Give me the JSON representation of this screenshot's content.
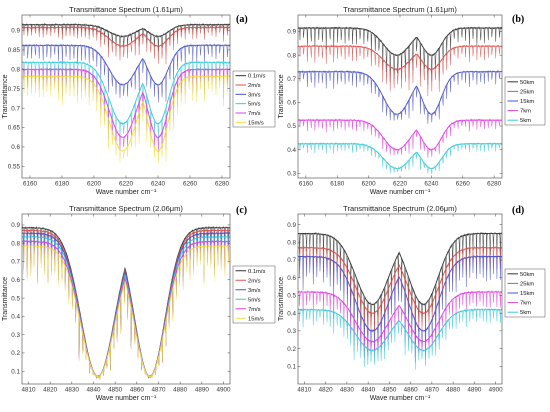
{
  "chart_data": [
    {
      "id": "a",
      "type": "line",
      "letter": "(a)",
      "title": "Transmittance Spectrum (1.61μm)",
      "xlabel": "Wave number cm⁻¹",
      "ylabel": "Transmittance",
      "xlim": [
        6155,
        6285
      ],
      "ylim": [
        0.52,
        0.94
      ],
      "xticks": [
        6160,
        6180,
        6200,
        6220,
        6240,
        6260,
        6280
      ],
      "yticks": [
        0.55,
        0.6,
        0.65,
        0.7,
        0.75,
        0.8,
        0.85,
        0.9
      ],
      "ytick_labels": [
        "0.55",
        "0.6",
        "0.65",
        "0.7",
        "0.75",
        "0.8",
        "0.85",
        "0.9"
      ],
      "legend_position": "right",
      "grid": false,
      "line_spacing": 2.4,
      "dips": [
        {
          "center": 6218,
          "width": 12
        },
        {
          "center": 6240,
          "width": 9
        }
      ],
      "series": [
        {
          "name": "0.1m/s",
          "color": "#333333",
          "baseline": 0.915,
          "band_min": 0.885,
          "line_min": 0.83
        },
        {
          "name": "2m/s",
          "color": "#d9534f",
          "baseline": 0.908,
          "band_min": 0.86,
          "line_min": 0.8
        },
        {
          "name": "3m/s",
          "color": "#4a52c9",
          "baseline": 0.862,
          "band_min": 0.76,
          "line_min": 0.7
        },
        {
          "name": "5m/s",
          "color": "#38c9d9",
          "baseline": 0.818,
          "band_min": 0.66,
          "line_min": 0.6
        },
        {
          "name": "7m/s",
          "color": "#e040e0",
          "baseline": 0.8,
          "band_min": 0.625,
          "line_min": 0.57
        },
        {
          "name": "15m/s",
          "color": "#f0e040",
          "baseline": 0.782,
          "band_min": 0.59,
          "line_min": 0.545
        }
      ]
    },
    {
      "id": "b",
      "type": "line",
      "letter": "(b)",
      "title": "Transmittance Spectrum (1.61μm)",
      "xlabel": "Wave number cm⁻¹",
      "ylabel": "Transmittance",
      "xlim": [
        6155,
        6285
      ],
      "ylim": [
        0.28,
        0.97
      ],
      "xticks": [
        6160,
        6180,
        6200,
        6220,
        6240,
        6260,
        6280
      ],
      "yticks": [
        0.3,
        0.4,
        0.5,
        0.6,
        0.7,
        0.8,
        0.9
      ],
      "ytick_labels": [
        "0.3",
        "0.4",
        "0.5",
        "0.6",
        "0.7",
        "0.8",
        "0.9"
      ],
      "legend_position": "right",
      "grid": false,
      "line_spacing": 2.4,
      "dips": [
        {
          "center": 6218,
          "width": 12
        },
        {
          "center": 6240,
          "width": 9
        }
      ],
      "series": [
        {
          "name": "50km",
          "color": "#333333",
          "baseline": 0.915,
          "band_min": 0.8,
          "line_min": 0.64
        },
        {
          "name": "25km",
          "color": "#d9534f",
          "baseline": 0.838,
          "band_min": 0.74,
          "line_min": 0.6
        },
        {
          "name": "15km",
          "color": "#4a52c9",
          "baseline": 0.73,
          "band_min": 0.55,
          "line_min": 0.5
        },
        {
          "name": "7km",
          "color": "#e040e0",
          "baseline": 0.525,
          "band_min": 0.4,
          "line_min": 0.36
        },
        {
          "name": "5km",
          "color": "#38c9d9",
          "baseline": 0.425,
          "band_min": 0.32,
          "line_min": 0.29
        }
      ]
    },
    {
      "id": "c",
      "type": "line",
      "letter": "(c)",
      "title": "Transmittance Spectrum (2.06μm)",
      "xlabel": "Wave number cm⁻¹",
      "ylabel": "Transmittance",
      "xlim": [
        4807,
        4903
      ],
      "ylim": [
        0.03,
        0.96
      ],
      "xticks": [
        4810,
        4820,
        4830,
        4840,
        4850,
        4860,
        4870,
        4880,
        4890,
        4900
      ],
      "yticks": [
        0.1,
        0.2,
        0.3,
        0.4,
        0.5,
        0.6,
        0.7,
        0.8,
        0.9
      ],
      "ytick_labels": [
        "0.1",
        "0.2",
        "0.3",
        "0.4",
        "0.5",
        "0.6",
        "0.7",
        "0.8",
        "0.9"
      ],
      "legend_position": "right",
      "grid": false,
      "line_spacing": 1.6,
      "dips": [
        {
          "center": 4842,
          "width": 11
        },
        {
          "center": 4866,
          "width": 10
        }
      ],
      "series": [
        {
          "name": "0.1m/s",
          "color": "#333333",
          "baseline": 0.885,
          "band_min": 0.07,
          "line_min": 0.06
        },
        {
          "name": "2m/s",
          "color": "#d9534f",
          "baseline": 0.87,
          "band_min": 0.07,
          "line_min": 0.06
        },
        {
          "name": "3m/s",
          "color": "#4a52c9",
          "baseline": 0.855,
          "band_min": 0.07,
          "line_min": 0.06
        },
        {
          "name": "5m/s",
          "color": "#38c9d9",
          "baseline": 0.835,
          "band_min": 0.07,
          "line_min": 0.06
        },
        {
          "name": "7m/s",
          "color": "#e040e0",
          "baseline": 0.81,
          "band_min": 0.07,
          "line_min": 0.06
        },
        {
          "name": "15m/s",
          "color": "#f0e040",
          "baseline": 0.785,
          "band_min": 0.07,
          "line_min": 0.06
        }
      ]
    },
    {
      "id": "d",
      "type": "line",
      "letter": "(d)",
      "title": "Transmittance Spectrum (2.06μm)",
      "xlabel": "Wave number cm⁻¹",
      "ylabel": "Transmittance",
      "xlim": [
        4807,
        4903
      ],
      "ylim": [
        0.0,
        0.96
      ],
      "xticks": [
        4810,
        4820,
        4830,
        4840,
        4850,
        4860,
        4870,
        4880,
        4890,
        4900
      ],
      "yticks": [
        0.1,
        0.2,
        0.3,
        0.4,
        0.5,
        0.6,
        0.7,
        0.8,
        0.9
      ],
      "ytick_labels": [
        "0.1",
        "0.2",
        "0.3",
        "0.4",
        "0.5",
        "0.6",
        "0.7",
        "0.8",
        "0.9"
      ],
      "legend_position": "right",
      "grid": false,
      "line_spacing": 1.6,
      "dips": [
        {
          "center": 4842,
          "width": 11
        },
        {
          "center": 4866,
          "width": 10
        }
      ],
      "series": [
        {
          "name": "50km",
          "color": "#333333",
          "baseline": 0.85,
          "band_min": 0.45,
          "line_min": 0.22
        },
        {
          "name": "25km",
          "color": "#d9534f",
          "baseline": 0.77,
          "band_min": 0.4,
          "line_min": 0.18
        },
        {
          "name": "15km",
          "color": "#4a52c9",
          "baseline": 0.72,
          "band_min": 0.3,
          "line_min": 0.08
        },
        {
          "name": "7km",
          "color": "#e040e0",
          "baseline": 0.52,
          "band_min": 0.24,
          "line_min": 0.1
        },
        {
          "name": "5km",
          "color": "#38c9d9",
          "baseline": 0.42,
          "band_min": 0.19,
          "line_min": 0.06
        }
      ]
    }
  ]
}
